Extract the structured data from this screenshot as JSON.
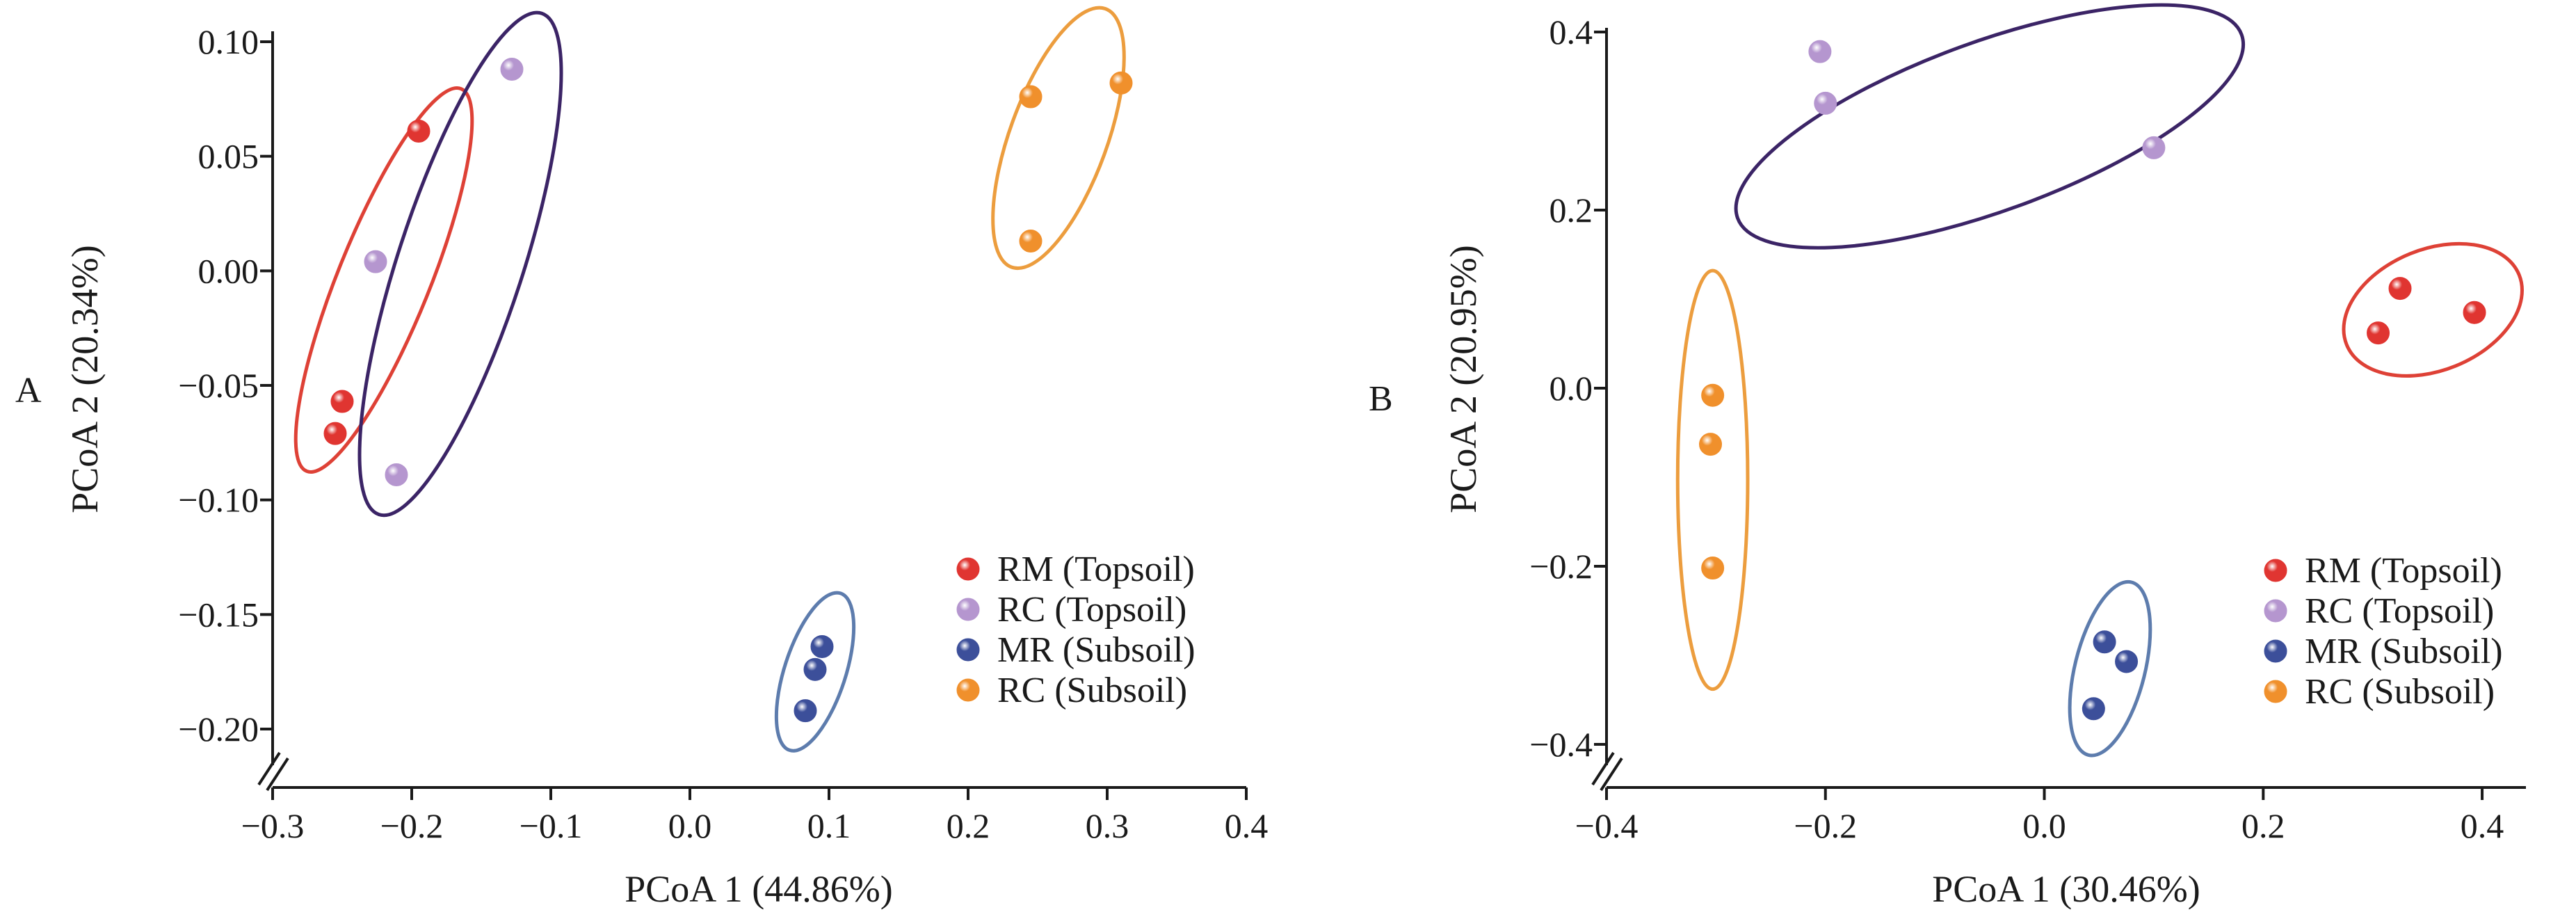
{
  "colors": {
    "RM_Topsoil": "#e03531",
    "RC_Topsoil": "#b596cf",
    "MR_Subsoil": "#3c4f9a",
    "RC_Subsoil": "#f0902c",
    "ellipse_RM_Topsoil": "#de4136",
    "ellipse_RC_Topsoil": "#3b2466",
    "ellipse_MR_Subsoil": "#5d7cad",
    "ellipse_RC_Subsoil": "#ec9d3e"
  },
  "chart_data": [
    {
      "panel": "A",
      "type": "scatter",
      "title": "",
      "xlabel": "PCoA 1 (44.86%)",
      "ylabel": "PCoA 2 (20.34%)",
      "xlim": [
        -0.3,
        0.4
      ],
      "ylim": [
        -0.2,
        0.1
      ],
      "x_ticks": [
        -0.3,
        -0.2,
        -0.1,
        0.0,
        0.1,
        0.2,
        0.3,
        0.4
      ],
      "x_tick_labels": [
        "−0.3",
        "−0.2",
        "−0.1",
        "0.0",
        "0.1",
        "0.2",
        "0.3",
        "0.4"
      ],
      "y_ticks": [
        0.1,
        0.05,
        0.0,
        -0.05,
        -0.1,
        -0.15,
        -0.2
      ],
      "y_tick_labels": [
        "0.10",
        "0.05",
        "0.00",
        "−0.05",
        "−0.10",
        "−0.15",
        "−0.20"
      ],
      "grid": false,
      "legend_position": "bottom-right",
      "series": [
        {
          "name": "RM (Topsoil)",
          "key": "RM_Topsoil",
          "points": [
            [
              -0.195,
              0.061
            ],
            [
              -0.25,
              -0.057
            ],
            [
              -0.255,
              -0.071
            ]
          ]
        },
        {
          "name": "RC (Topsoil)",
          "key": "RC_Topsoil",
          "points": [
            [
              -0.128,
              0.088
            ],
            [
              -0.226,
              0.004
            ],
            [
              -0.211,
              -0.089
            ]
          ]
        },
        {
          "name": "MR (Subsoil)",
          "key": "MR_Subsoil",
          "points": [
            [
              0.095,
              -0.164
            ],
            [
              0.09,
              -0.174
            ],
            [
              0.083,
              -0.192
            ]
          ]
        },
        {
          "name": "RC (Subsoil)",
          "key": "RC_Subsoil",
          "points": [
            [
              0.245,
              0.076
            ],
            [
              0.31,
              0.082
            ],
            [
              0.245,
              0.013
            ]
          ]
        }
      ],
      "ellipses": [
        {
          "key": "RM_Topsoil",
          "center": [
            -0.22,
            -0.004
          ],
          "semi_axes": [
            0.033,
            0.09
          ],
          "rotation_deg": 22
        },
        {
          "key": "RC_Topsoil",
          "center": [
            -0.165,
            0.003
          ],
          "semi_axes": [
            0.045,
            0.115
          ],
          "rotation_deg": 18
        },
        {
          "key": "MR_Subsoil",
          "center": [
            0.09,
            -0.175
          ],
          "semi_axes": [
            0.022,
            0.036
          ],
          "rotation_deg": 18
        },
        {
          "key": "RC_Subsoil",
          "center": [
            0.265,
            0.058
          ],
          "semi_axes": [
            0.035,
            0.06
          ],
          "rotation_deg": 20
        }
      ]
    },
    {
      "panel": "B",
      "type": "scatter",
      "title": "",
      "xlabel": "PCoA 1 (30.46%)",
      "ylabel": "PCoA 2 (20.95%)",
      "xlim": [
        -0.4,
        0.44
      ],
      "ylim": [
        -0.4,
        0.4
      ],
      "x_ticks": [
        -0.4,
        -0.2,
        0.0,
        0.2,
        0.4
      ],
      "x_tick_labels": [
        "−0.4",
        "−0.2",
        "0.0",
        "0.2",
        "0.4"
      ],
      "y_ticks": [
        0.4,
        0.2,
        0.0,
        -0.2,
        -0.4
      ],
      "y_tick_labels": [
        "0.4",
        "0.2",
        "0.0",
        "−0.2",
        "−0.4"
      ],
      "grid": false,
      "legend_position": "bottom-right",
      "series": [
        {
          "name": "RM (Topsoil)",
          "key": "RM_Topsoil",
          "points": [
            [
              0.325,
              0.112
            ],
            [
              0.393,
              0.085
            ],
            [
              0.305,
              0.062
            ]
          ]
        },
        {
          "name": "RC (Topsoil)",
          "key": "RC_Topsoil",
          "points": [
            [
              -0.205,
              0.378
            ],
            [
              -0.2,
              0.32
            ],
            [
              0.1,
              0.27
            ]
          ]
        },
        {
          "name": "MR (Subsoil)",
          "key": "MR_Subsoil",
          "points": [
            [
              0.055,
              -0.285
            ],
            [
              0.075,
              -0.307
            ],
            [
              0.045,
              -0.36
            ]
          ]
        },
        {
          "name": "RC (Subsoil)",
          "key": "RC_Subsoil",
          "points": [
            [
              -0.303,
              -0.008
            ],
            [
              -0.305,
              -0.063
            ],
            [
              -0.303,
              -0.202
            ]
          ]
        }
      ],
      "ellipses": [
        {
          "key": "RM_Topsoil",
          "center": [
            0.355,
            0.088
          ],
          "semi_axes": [
            0.085,
            0.068
          ],
          "rotation_deg": -22
        },
        {
          "key": "RC_Topsoil",
          "center": [
            -0.05,
            0.294
          ],
          "semi_axes": [
            0.245,
            0.095
          ],
          "rotation_deg": -20
        },
        {
          "key": "MR_Subsoil",
          "center": [
            0.06,
            -0.315
          ],
          "semi_axes": [
            0.032,
            0.1
          ],
          "rotation_deg": 14
        },
        {
          "key": "RC_Subsoil",
          "center": [
            -0.303,
            -0.103
          ],
          "semi_axes": [
            0.032,
            0.235
          ],
          "rotation_deg": 0
        }
      ]
    }
  ]
}
